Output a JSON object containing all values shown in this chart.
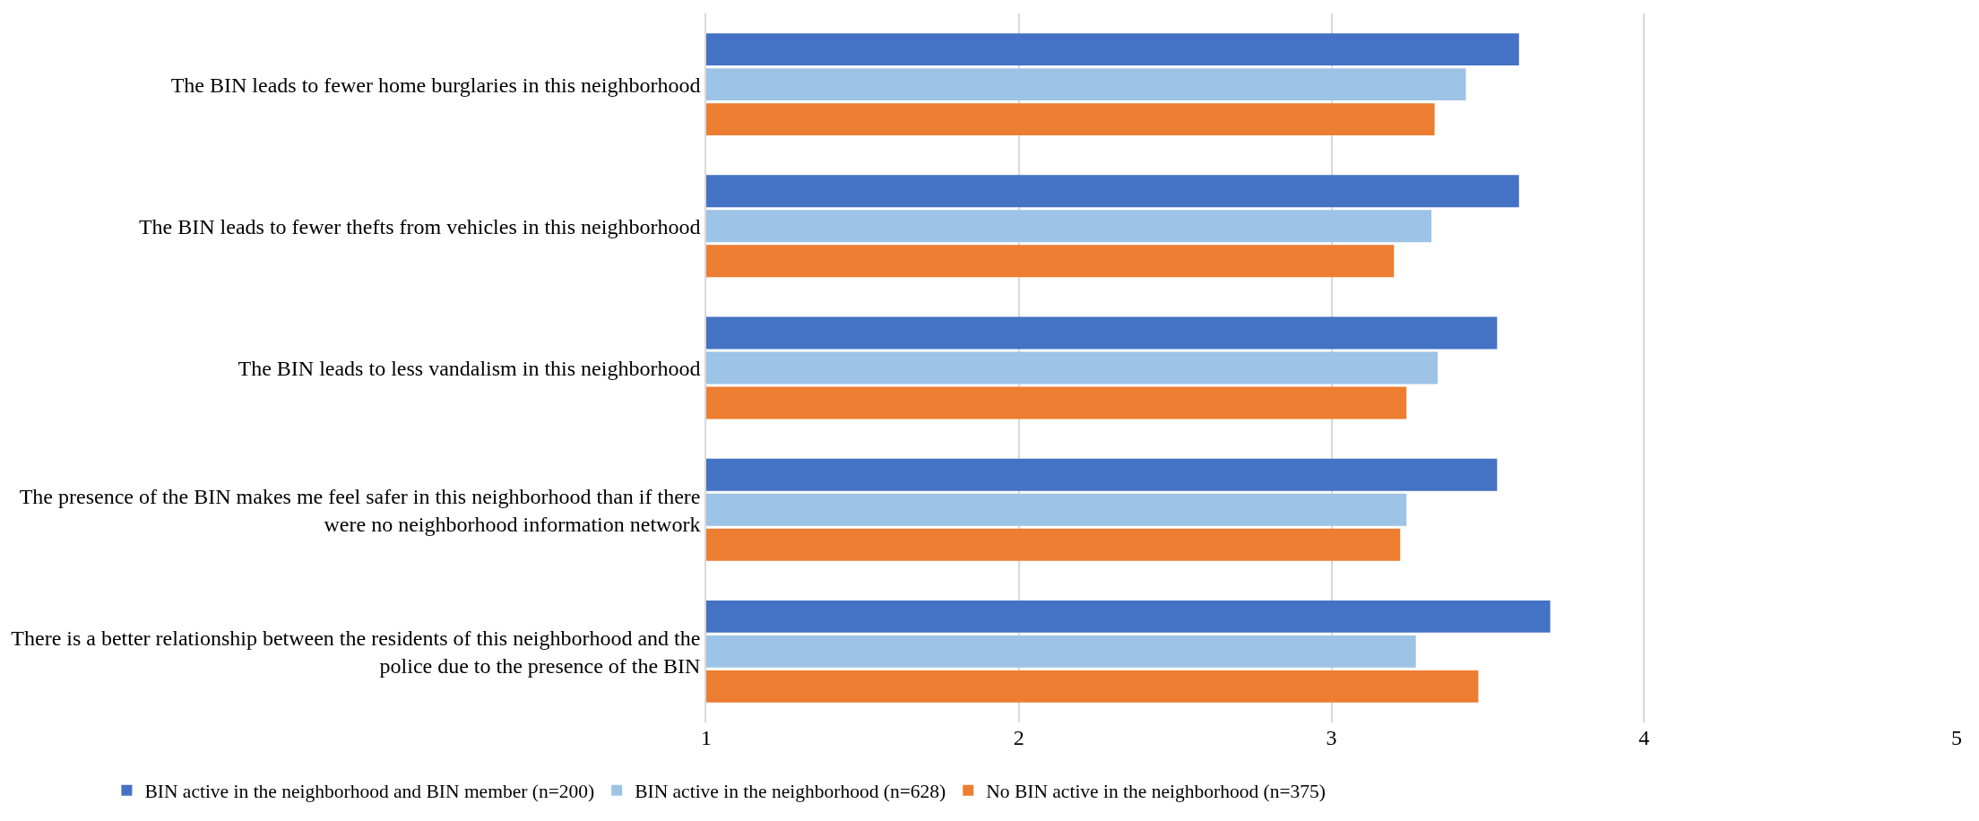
{
  "chart_data": {
    "type": "bar",
    "orientation": "horizontal",
    "categories": [
      "The BIN leads to fewer home burglaries in this neighborhood",
      "The BIN leads to fewer thefts from vehicles in this neighborhood",
      "The BIN leads to less vandalism in this neighborhood",
      "The presence of the BIN makes me feel safer in this neighborhood than if there were no neighborhood information network",
      "There is a better relationship between the residents of this neighborhood and the police due to the presence of the BIN"
    ],
    "series": [
      {
        "name": "BIN active in the neighborhood and BIN member (n=200)",
        "color": "#4472c4",
        "values": [
          3.6,
          3.6,
          3.53,
          3.53,
          3.7
        ]
      },
      {
        "name": "BIN active in the neighborhood (n=628)",
        "color": "#9dc3e6",
        "values": [
          3.43,
          3.32,
          3.34,
          3.24,
          3.27
        ]
      },
      {
        "name": "No BIN active in the neighborhood (n=375)",
        "color": "#ed7d31",
        "values": [
          3.33,
          3.2,
          3.24,
          3.22,
          3.47
        ]
      }
    ],
    "xlim": [
      1,
      5
    ],
    "xticks": [
      1,
      2,
      3,
      4,
      5
    ],
    "grid": "x",
    "legend": "bottom"
  }
}
